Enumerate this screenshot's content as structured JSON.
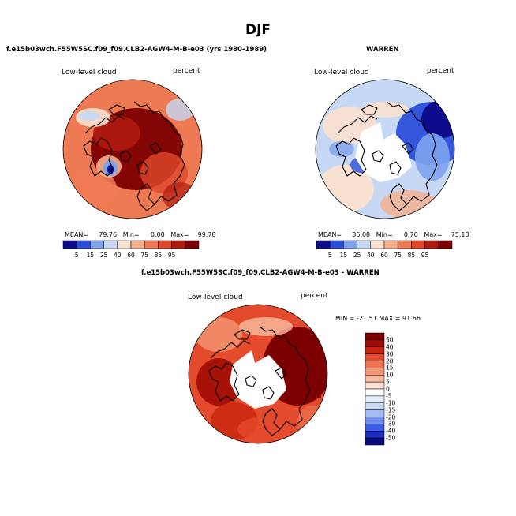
{
  "figure": {
    "season": "DJF",
    "panel1_title": "f.e15b03wch.F55W5SC.f09_f09.CLB2-AGW4-M-B-e03 (yrs 1980-1989)",
    "panel2_title": "WARREN",
    "panel3_title": "f.e15b03wch.F55W5SC.f09_f09.CLB2-AGW4-M-B-e03 - WARREN"
  },
  "chart_data": [
    {
      "type": "heatmap",
      "projection": "north polar stereographic",
      "title": "f.e15b03wch.F55W5SC.f09_f09.CLB2-AGW4-M-B-e03 (yrs 1980-1989)",
      "variable": "Low-level cloud",
      "units": "percent",
      "stats": {
        "mean_label": "MEAN=",
        "mean": "79.76",
        "min_label": "Min=",
        "min": "0.00",
        "max_label": "Max=",
        "max": "99.78"
      },
      "colorbar_levels": [
        "5",
        "15",
        "25",
        "40",
        "60",
        "75",
        "85",
        "95"
      ]
    },
    {
      "type": "heatmap",
      "projection": "north polar stereographic",
      "title": "WARREN",
      "variable": "Low-level cloud",
      "units": "percent",
      "stats": {
        "mean_label": "MEAN=",
        "mean": "36.08",
        "min_label": "Min=",
        "min": "0.70",
        "max_label": "Max=",
        "max": "75.13"
      },
      "colorbar_levels": [
        "5",
        "15",
        "25",
        "40",
        "60",
        "75",
        "85",
        "95"
      ]
    },
    {
      "type": "heatmap",
      "projection": "north polar stereographic",
      "title": "f.e15b03wch.F55W5SC.f09_f09.CLB2-AGW4-M-B-e03 - WARREN",
      "variable": "Low-level cloud",
      "units": "percent",
      "stats_text": "MIN = -21.51  MAX =  91.66",
      "colorbar_levels": [
        "50",
        "40",
        "30",
        "20",
        "15",
        "10",
        "5",
        "0",
        "-5",
        "-10",
        "-15",
        "-20",
        "-30",
        "-40",
        "-50"
      ]
    }
  ],
  "colors": {
    "abs_scale": [
      "#0c0c8c",
      "#2b4fd8",
      "#7ea3ee",
      "#c6d8f4",
      "#fbe1cf",
      "#f6b08c",
      "#ee7a54",
      "#e0472a",
      "#b01b0e",
      "#7d0000"
    ],
    "diff_scale": [
      "#0a0a7c",
      "#1c2fc4",
      "#3a5ee8",
      "#6f8ff0",
      "#a3bcf5",
      "#cbdaf7",
      "#e6eefb",
      "#ffffff",
      "#fde0cf",
      "#f9bca0",
      "#f49774",
      "#ee7250",
      "#e44a2c",
      "#c8260f",
      "#a00c04",
      "#7d0000"
    ]
  }
}
